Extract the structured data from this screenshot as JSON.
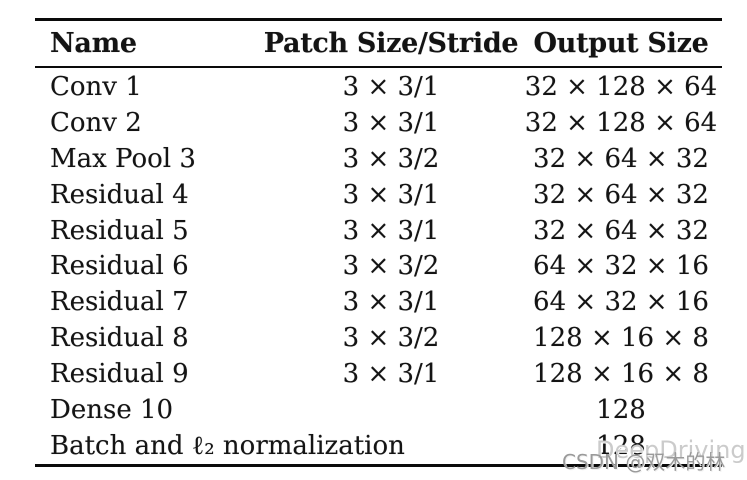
{
  "figure": {
    "background_color": "#ffffff",
    "text_color": "#141414",
    "rule_color": "#0a0a0a"
  },
  "table": {
    "columns": [
      {
        "label": "Name"
      },
      {
        "label": "Patch Size/Stride"
      },
      {
        "label": "Output Size"
      }
    ],
    "rows": [
      {
        "name": "Conv 1",
        "patch_size_stride": "3 × 3/1",
        "output_size": "32 × 128 × 64"
      },
      {
        "name": "Conv 2",
        "patch_size_stride": "3 × 3/1",
        "output_size": "32 × 128 × 64"
      },
      {
        "name": "Max Pool 3",
        "patch_size_stride": "3 × 3/2",
        "output_size": "32 × 64 × 32"
      },
      {
        "name": "Residual 4",
        "patch_size_stride": "3 × 3/1",
        "output_size": "32 × 64 × 32"
      },
      {
        "name": "Residual 5",
        "patch_size_stride": "3 × 3/1",
        "output_size": "32 × 64 × 32"
      },
      {
        "name": "Residual 6",
        "patch_size_stride": "3 × 3/2",
        "output_size": "64 × 32 × 16"
      },
      {
        "name": "Residual 7",
        "patch_size_stride": "3 × 3/1",
        "output_size": "64 × 32 × 16"
      },
      {
        "name": "Residual 8",
        "patch_size_stride": "3 × 3/2",
        "output_size": "128 × 16 × 8"
      },
      {
        "name": "Residual 9",
        "patch_size_stride": "3 × 3/1",
        "output_size": "128 × 16 × 8"
      },
      {
        "name": "Dense 10",
        "patch_size_stride": "",
        "output_size": "128"
      },
      {
        "name": "Batch and ℓ₂ normalization",
        "patch_size_stride": "",
        "output_size": "128"
      }
    ]
  },
  "watermark": {
    "back": "DeepDriving",
    "front": "CSDN @双木的林"
  }
}
